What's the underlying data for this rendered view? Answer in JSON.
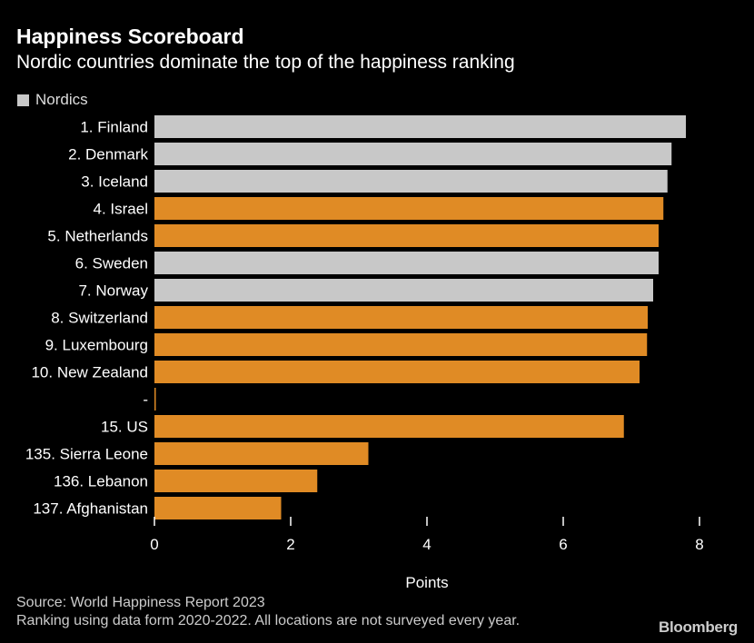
{
  "header": {
    "title": "Happiness Scoreboard",
    "subtitle": "Nordic countries dominate the top of the happiness ranking"
  },
  "legend": {
    "label": "Nordics",
    "color": "#c8c8c8"
  },
  "colors": {
    "nordic": "#c8c8c8",
    "other": "#e08b25",
    "background": "#000000",
    "text": "#ffffff"
  },
  "chart_data": {
    "type": "bar",
    "orientation": "horizontal",
    "title": "Happiness Scoreboard",
    "subtitle": "Nordic countries dominate the top of the happiness ranking",
    "xlabel": "Points",
    "ylabel": "",
    "xlim": [
      0,
      8
    ],
    "xticks": [
      0,
      2,
      4,
      6,
      8
    ],
    "grid": false,
    "legend_position": "top-left",
    "categories": [
      "1. Finland",
      "2. Denmark",
      "3. Iceland",
      "4. Israel",
      "5. Netherlands",
      "6. Sweden",
      "7. Norway",
      "8. Switzerland",
      "9. Luxembourg",
      "10. New Zealand",
      "-",
      "15. US",
      "135. Sierra Leone",
      "136. Lebanon",
      "137. Afghanistan"
    ],
    "values": [
      7.8,
      7.59,
      7.53,
      7.47,
      7.4,
      7.4,
      7.32,
      7.24,
      7.23,
      7.12,
      0.02,
      6.89,
      3.14,
      2.39,
      1.86
    ],
    "nordic": [
      true,
      true,
      true,
      false,
      false,
      true,
      true,
      false,
      false,
      false,
      false,
      false,
      false,
      false,
      false
    ]
  },
  "footer": {
    "source": "Source: World Happiness Report 2023",
    "note": "Ranking using data form 2020-2022. All locations are not surveyed every year.",
    "brand": "Bloomberg"
  }
}
